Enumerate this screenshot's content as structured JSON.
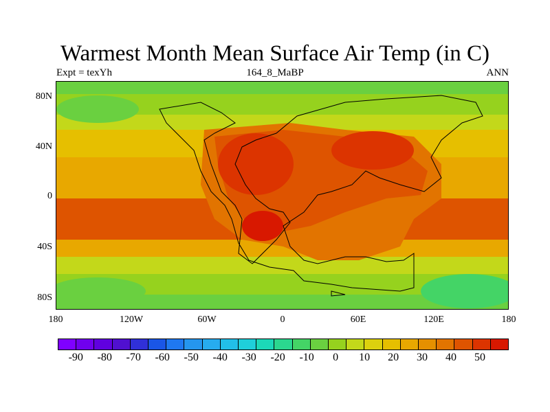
{
  "title": "Warmest Month Mean Surface Air Temp (in C)",
  "left_label": "Expt = texYh",
  "center_label": "164_8_MaBP",
  "right_label": "ANN",
  "map": {
    "y_ticks": [
      "80N",
      "40N",
      "0",
      "40S",
      "80S"
    ],
    "x_ticks": [
      "180",
      "120W",
      "60W",
      "0",
      "60E",
      "120E",
      "180"
    ]
  },
  "colorbar": {
    "colors": [
      "#7f00ff",
      "#7000ee",
      "#6000e0",
      "#5010d0",
      "#3030d8",
      "#1a56e6",
      "#1f78f0",
      "#2596ee",
      "#27acef",
      "#22bfe8",
      "#1fcfda",
      "#1cd8b8",
      "#2bd78f",
      "#44d466",
      "#6ad040",
      "#96d21e",
      "#c3d81a",
      "#dcd10e",
      "#e6bf00",
      "#e8a800",
      "#e59000",
      "#e27400",
      "#de5400",
      "#dc3400",
      "#d81800"
    ],
    "labels": [
      "-90",
      "-80",
      "-70",
      "-60",
      "-50",
      "-40",
      "-30",
      "-20",
      "-10",
      "0",
      "10",
      "20",
      "30",
      "40",
      "50"
    ]
  }
}
